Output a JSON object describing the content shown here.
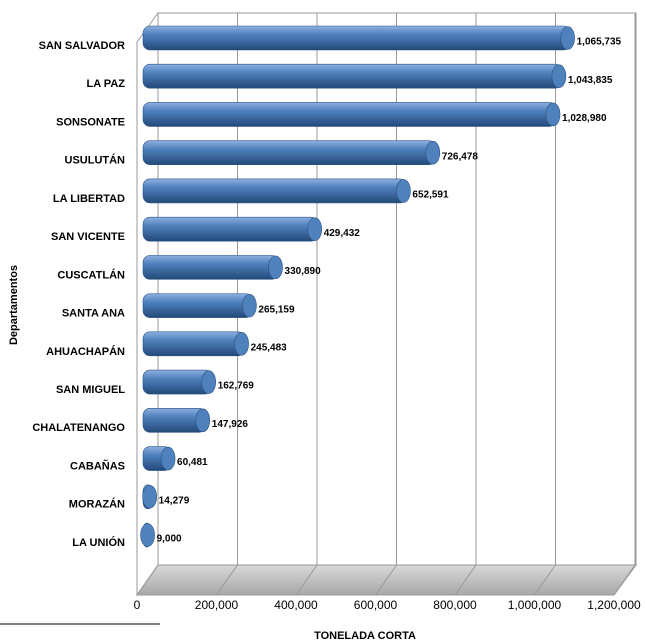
{
  "chart_data": {
    "type": "bar",
    "orientation": "horizontal",
    "categories": [
      "SAN SALVADOR",
      "LA PAZ",
      "SONSONATE",
      "USULUTÁN",
      "LA LIBERTAD",
      "SAN VICENTE",
      "CUSCATLÁN",
      "SANTA ANA",
      "AHUACHAPÁN",
      "SAN MIGUEL",
      "CHALATENANGO",
      "CABAÑAS",
      "MORAZÁN",
      "LA UNIÓN"
    ],
    "values": [
      1065735,
      1043835,
      1028980,
      726478,
      652591,
      429432,
      330890,
      265159,
      245483,
      162769,
      147926,
      60481,
      14279,
      9000
    ],
    "value_labels": [
      "1,065,735",
      "1,043,835",
      "1,028,980",
      "726,478",
      "652,591",
      "429,432",
      "330,890",
      "265,159",
      "245,483",
      "162,769",
      "147,926",
      "60,481",
      "14,279",
      "9,000"
    ],
    "color": "#4f81bd",
    "xlabel": "TONELADA CORTA",
    "ylabel": "Departamentos",
    "xlim": [
      0,
      1200000
    ],
    "xticks": [
      0,
      {
        "value": 200000,
        "label": "200,000"
      },
      {
        "value": 400000,
        "label": "400,000"
      },
      {
        "value": 600000,
        "label": "600,000"
      },
      {
        "value": 800000,
        "label": "800,000"
      },
      {
        "value": 1000000,
        "label": "1,000,000"
      },
      {
        "value": 1200000,
        "label": "1,200,000"
      }
    ],
    "grid": true
  }
}
